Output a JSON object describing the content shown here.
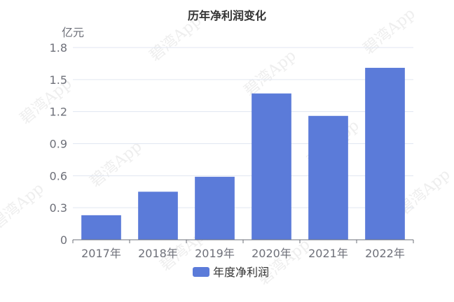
{
  "chart_data": {
    "type": "bar",
    "title": "历年净利润变化",
    "yunit": "亿元",
    "categories": [
      "2017年",
      "2018年",
      "2019年",
      "2020年",
      "2021年",
      "2022年"
    ],
    "series": [
      {
        "name": "年度净利润",
        "values": [
          0.23,
          0.45,
          0.59,
          1.37,
          1.16,
          1.61
        ],
        "color": "#5b7bd9"
      }
    ],
    "ylim": [
      0,
      1.8
    ],
    "yticks": [
      "0",
      "0.3",
      "0.6",
      "0.9",
      "1.2",
      "1.5",
      "1.8"
    ],
    "grid": true,
    "legend": "bottom-center"
  },
  "watermark": "碧湾App"
}
